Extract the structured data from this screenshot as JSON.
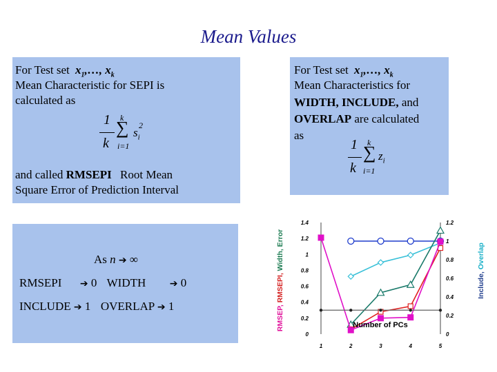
{
  "title": "Mean Values",
  "left_box": {
    "line1_prefix": "For Test set",
    "line1_vars": "x",
    "line2": "Mean Characteristic for SEPI is",
    "line3": "calculated as",
    "formula_num": "1",
    "formula_den": "k",
    "formula_sum_top": "k",
    "formula_sum_bottom": "i=1",
    "formula_term": "s",
    "formula_sub": "i",
    "formula_sup": "2",
    "line4_prefix": "and called",
    "line4_bold": "RMSEPI",
    "line4_suffix": "Root Mean",
    "line5": "Square Error of Prediction Interval"
  },
  "right_box": {
    "line1_prefix": "For Test set",
    "line2": "Mean Characteristics for",
    "line3_bold": "WIDTH, INCLUDE,",
    "line3_suffix": " and",
    "line4_bold": "OVERLAP",
    "line4_suffix": " are calculated",
    "line5": "as",
    "formula_num": "1",
    "formula_den": "k",
    "formula_sum_top": "k",
    "formula_sum_bottom": "i=1",
    "formula_term": "z",
    "formula_sub": "i"
  },
  "limit_box": {
    "as_label": "As",
    "n": "n",
    "inf": "∞",
    "rmsepi": "RMSEPI",
    "zero1": "0",
    "width": "WIDTH",
    "zero2": "0",
    "include": "INCLUDE",
    "one1": "1",
    "overlap": "OVERLAP",
    "one2": "1"
  },
  "chart_data": {
    "type": "line",
    "xlabel": "Number of PCs",
    "x": [
      1,
      2,
      3,
      4,
      5
    ],
    "left_ylabel_parts": [
      "RMSEP,",
      "RMSEPI,",
      "Width, Error"
    ],
    "left_ylabel_colors": [
      "#e0109a",
      "#d42020",
      "#1a7a50"
    ],
    "right_ylabel_parts": [
      "Include,",
      "Overlap"
    ],
    "right_ylabel_colors": [
      "#1e3c8c",
      "#1ab0c8"
    ],
    "left_ylim": [
      0,
      1.4
    ],
    "left_ticks": [
      "0",
      "0.2",
      "0.4",
      "0.6",
      "0.8",
      "1",
      "1.2",
      "1.4"
    ],
    "right_ylim": [
      0,
      1.2
    ],
    "right_ticks": [
      "0",
      "0.2",
      "0.4",
      "0.6",
      "0.8",
      "1",
      "1.2"
    ],
    "series": [
      {
        "values": [
          null,
          1.0,
          1.0,
          1.0,
          1.0
        ],
        "axis": "right",
        "color": "#1e3ccc",
        "marker": "circle"
      },
      {
        "values": [
          null,
          0.62,
          0.77,
          0.85,
          0.98
        ],
        "axis": "right",
        "color": "#38c0d8",
        "marker": "diamond"
      },
      {
        "values": [
          null,
          0.12,
          0.52,
          0.62,
          1.3
        ],
        "axis": "left",
        "color": "#1a7a6a",
        "marker": "triangle"
      },
      {
        "values": [
          null,
          0.06,
          0.28,
          0.35,
          1.08
        ],
        "axis": "left",
        "color": "#e02020",
        "marker": "square"
      },
      {
        "values": [
          1.21,
          0.05,
          0.2,
          0.21,
          1.16
        ],
        "axis": "left",
        "color": "#e010c8",
        "marker": "filled-square"
      },
      {
        "values": [
          0.3,
          0.3,
          0.3,
          0.3,
          0.3
        ],
        "axis": "left",
        "color": "#606060",
        "marker": "dot"
      }
    ]
  }
}
